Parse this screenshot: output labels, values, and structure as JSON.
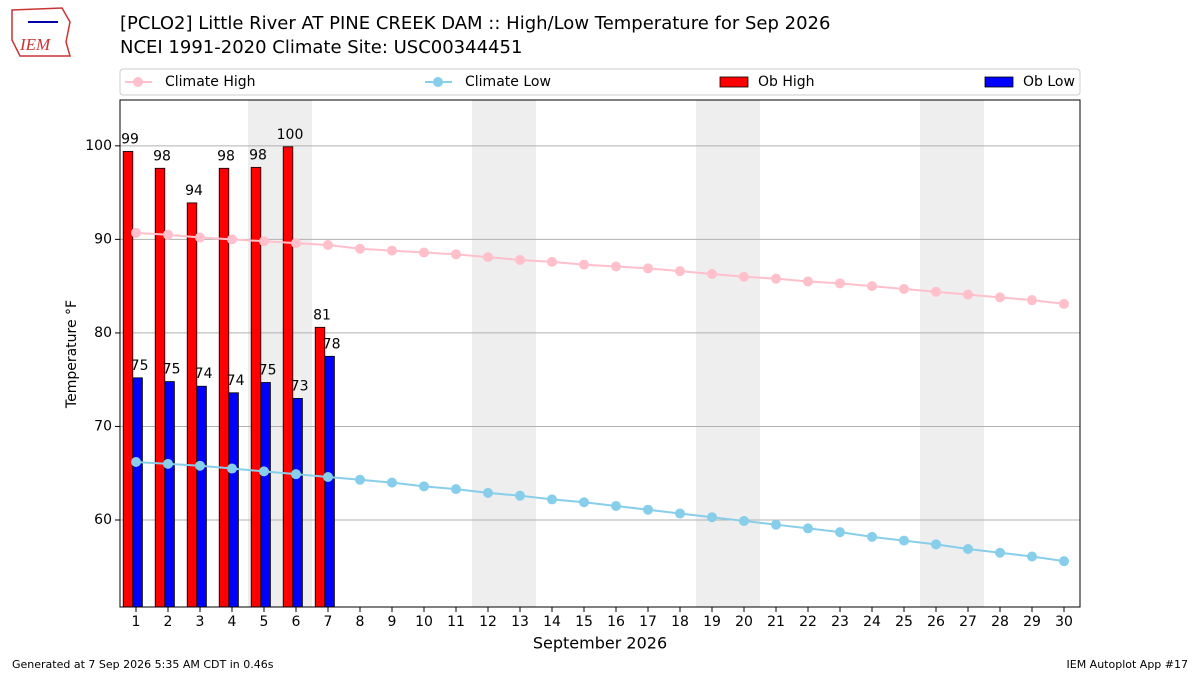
{
  "logo_text": "IEM",
  "footer_left": "Generated at 7 Sep 2026 5:35 AM CDT in 0.46s",
  "footer_right": "IEM Autoplot App #17",
  "chart_data": {
    "type": "bar",
    "title": "[PCLO2] Little River  AT PINE CREEK DAM :: High/Low Temperature for Sep 2026",
    "subtitle": "NCEI 1991-2020 Climate Site: USC00344451",
    "xlabel": "September 2026",
    "ylabel": "Temperature °F",
    "x": [
      1,
      2,
      3,
      4,
      5,
      6,
      7,
      8,
      9,
      10,
      11,
      12,
      13,
      14,
      15,
      16,
      17,
      18,
      19,
      20,
      21,
      22,
      23,
      24,
      25,
      26,
      27,
      28,
      29,
      30
    ],
    "xlim": [
      0.5,
      30.5
    ],
    "xticks": [
      1,
      2,
      3,
      4,
      5,
      6,
      7,
      8,
      9,
      10,
      11,
      12,
      13,
      14,
      15,
      16,
      17,
      18,
      19,
      20,
      21,
      22,
      23,
      24,
      25,
      26,
      27,
      28,
      29,
      30
    ],
    "ylim": [
      50.7,
      104.9
    ],
    "yticks": [
      60,
      70,
      80,
      90,
      100
    ],
    "grid": true,
    "weekend_shading": true,
    "series": [
      {
        "name": "Climate High",
        "type": "line",
        "color": "#ffc0cb",
        "values": [
          90.7,
          90.5,
          90.2,
          90.0,
          89.8,
          89.6,
          89.4,
          89.0,
          88.8,
          88.6,
          88.4,
          88.1,
          87.8,
          87.6,
          87.3,
          87.1,
          86.9,
          86.6,
          86.3,
          86.0,
          85.8,
          85.5,
          85.3,
          85.0,
          84.7,
          84.4,
          84.1,
          83.8,
          83.5,
          83.1
        ]
      },
      {
        "name": "Climate Low",
        "type": "line",
        "color": "#87ceeb",
        "values": [
          66.2,
          66.0,
          65.8,
          65.5,
          65.2,
          64.9,
          64.6,
          64.3,
          64.0,
          63.6,
          63.3,
          62.9,
          62.6,
          62.2,
          61.9,
          61.5,
          61.1,
          60.7,
          60.3,
          59.9,
          59.5,
          59.1,
          58.7,
          58.2,
          57.8,
          57.4,
          56.9,
          56.5,
          56.1,
          55.6
        ]
      },
      {
        "name": "Ob High",
        "type": "bar",
        "color": "#ff0000",
        "values": [
          99.4,
          97.6,
          93.9,
          97.6,
          97.7,
          99.9,
          80.6,
          null,
          null,
          null,
          null,
          null,
          null,
          null,
          null,
          null,
          null,
          null,
          null,
          null,
          null,
          null,
          null,
          null,
          null,
          null,
          null,
          null,
          null,
          null
        ],
        "value_labels": [
          "99",
          "98",
          "94",
          "98",
          "98",
          "100",
          "81",
          null,
          null,
          null,
          null,
          null,
          null,
          null,
          null,
          null,
          null,
          null,
          null,
          null,
          null,
          null,
          null,
          null,
          null,
          null,
          null,
          null,
          null,
          null
        ]
      },
      {
        "name": "Ob Low",
        "type": "bar",
        "color": "#0000ff",
        "values": [
          75.2,
          74.8,
          74.3,
          73.6,
          74.7,
          73.0,
          77.5,
          null,
          null,
          null,
          null,
          null,
          null,
          null,
          null,
          null,
          null,
          null,
          null,
          null,
          null,
          null,
          null,
          null,
          null,
          null,
          null,
          null,
          null,
          null
        ],
        "value_labels": [
          "75",
          "75",
          "74",
          "74",
          "75",
          "73",
          "78",
          null,
          null,
          null,
          null,
          null,
          null,
          null,
          null,
          null,
          null,
          null,
          null,
          null,
          null,
          null,
          null,
          null,
          null,
          null,
          null,
          null,
          null,
          null
        ]
      }
    ]
  }
}
